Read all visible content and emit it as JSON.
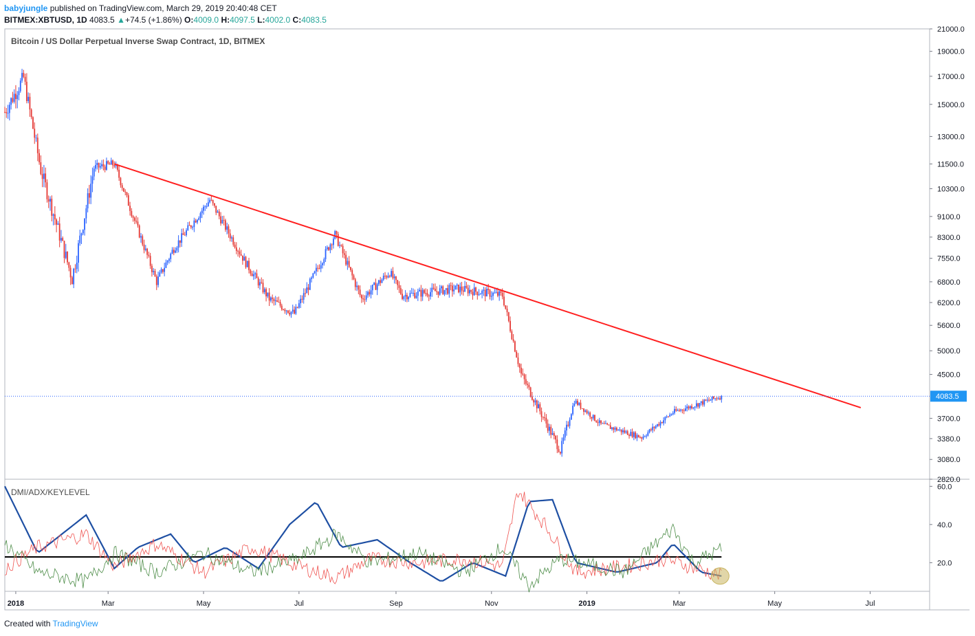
{
  "header": {
    "user": "babyjungle",
    "published": "published on TradingView.com, March 29, 2019 20:40:48 CET",
    "symbol": "BITMEX:XBTUSD, 1D",
    "last": "4083.5",
    "change_arrow": "▲",
    "change": "+74.5 (+1.86%)",
    "o_label": "O:",
    "o_val": "4009.0",
    "h_label": "H:",
    "h_val": "4097.5",
    "l_label": "L:",
    "l_val": "4002.0",
    "c_label": "C:",
    "c_val": "4083.5"
  },
  "footer": {
    "created_with": "Created with",
    "brand": "TradingView"
  },
  "chart_data": [
    {
      "type": "candlestick",
      "title": "Bitcoin / US Dollar Perpetual Inverse Swap Contract, 1D, BITMEX",
      "scale": "log",
      "ylim": [
        2820,
        21000
      ],
      "y_ticks": [
        "21000.0",
        "19000.0",
        "17000.0",
        "15000.0",
        "13000.0",
        "11500.0",
        "10300.0",
        "9100.0",
        "8300.0",
        "7550.0",
        "6800.0",
        "6200.0",
        "5600.0",
        "5000.0",
        "4500.0",
        "4083.5",
        "3700.0",
        "3380.0",
        "3080.0",
        "2820.0"
      ],
      "x_ticks": [
        "2018",
        "Mar",
        "May",
        "Jul",
        "Sep",
        "Nov",
        "2019",
        "Mar",
        "May",
        "Jul"
      ],
      "last_price": 4083.5,
      "price_path": [
        {
          "date": "2017-12-25",
          "close": 14500
        },
        {
          "date": "2018-01-06",
          "close": 16900
        },
        {
          "date": "2018-01-17",
          "close": 11200
        },
        {
          "date": "2018-02-06",
          "close": 6900
        },
        {
          "date": "2018-02-20",
          "close": 11300
        },
        {
          "date": "2018-03-05",
          "close": 11500
        },
        {
          "date": "2018-04-01",
          "close": 6800
        },
        {
          "date": "2018-04-12",
          "close": 7900
        },
        {
          "date": "2018-05-05",
          "close": 9800
        },
        {
          "date": "2018-05-28",
          "close": 7400
        },
        {
          "date": "2018-06-12",
          "close": 6300
        },
        {
          "date": "2018-06-28",
          "close": 5900
        },
        {
          "date": "2018-07-24",
          "close": 8400
        },
        {
          "date": "2018-08-10",
          "close": 6300
        },
        {
          "date": "2018-08-28",
          "close": 7100
        },
        {
          "date": "2018-09-05",
          "close": 6400
        },
        {
          "date": "2018-10-10",
          "close": 6600
        },
        {
          "date": "2018-11-08",
          "close": 6400
        },
        {
          "date": "2018-11-20",
          "close": 4500
        },
        {
          "date": "2018-12-15",
          "close": 3200
        },
        {
          "date": "2018-12-24",
          "close": 4000
        },
        {
          "date": "2019-01-10",
          "close": 3600
        },
        {
          "date": "2019-02-05",
          "close": 3400
        },
        {
          "date": "2019-02-25",
          "close": 3800
        },
        {
          "date": "2019-03-28",
          "close": 4083.5
        }
      ],
      "trendline": [
        {
          "date": "2018-03-05",
          "price": 11500
        },
        {
          "date": "2019-06-25",
          "price": 3880
        }
      ],
      "colors": {
        "up": "#2962ff",
        "down": "#e53935",
        "trendline": "#ff1f1f",
        "last_line": "#2962ff"
      }
    },
    {
      "type": "line",
      "title": "DMI/ADX/KEYLEVEL",
      "ylim": [
        5,
        63
      ],
      "y_ticks": [
        "60.0",
        "40.0",
        "20.0"
      ],
      "key_level": 23,
      "series": [
        {
          "color": "#1e4fa3",
          "points": [
            [
              "2017-12-25",
              60
            ],
            [
              "2018-01-15",
              25
            ],
            [
              "2018-02-15",
              45
            ],
            [
              "2018-03-05",
              17
            ],
            [
              "2018-03-20",
              28
            ],
            [
              "2018-04-10",
              35
            ],
            [
              "2018-04-25",
              20
            ],
            [
              "2018-05-15",
              28
            ],
            [
              "2018-06-05",
              17
            ],
            [
              "2018-06-25",
              40
            ],
            [
              "2018-07-12",
              52
            ],
            [
              "2018-07-28",
              28
            ],
            [
              "2018-08-20",
              32
            ],
            [
              "2018-09-10",
              20
            ],
            [
              "2018-09-30",
              10
            ],
            [
              "2018-10-20",
              20
            ],
            [
              "2018-11-10",
              13
            ],
            [
              "2018-11-25",
              52
            ],
            [
              "2018-12-10",
              53
            ],
            [
              "2018-12-25",
              20
            ],
            [
              "2019-01-20",
              15
            ],
            [
              "2019-02-15",
              20
            ],
            [
              "2019-02-25",
              30
            ],
            [
              "2019-03-15",
              15
            ],
            [
              "2019-03-28",
              13
            ]
          ]
        },
        {
          "color": "#ef5350",
          "points": [
            [
              "2017-12-25",
              17
            ],
            [
              "2018-01-15",
              28
            ],
            [
              "2018-02-15",
              35
            ],
            [
              "2018-03-05",
              18
            ],
            [
              "2018-04-01",
              30
            ],
            [
              "2018-05-01",
              15
            ],
            [
              "2018-06-01",
              28
            ],
            [
              "2018-07-01",
              18
            ],
            [
              "2018-07-25",
              12
            ],
            [
              "2018-08-15",
              22
            ],
            [
              "2018-09-15",
              20
            ],
            [
              "2018-10-15",
              22
            ],
            [
              "2018-11-08",
              18
            ],
            [
              "2018-11-18",
              58
            ],
            [
              "2018-12-05",
              40
            ],
            [
              "2018-12-25",
              15
            ],
            [
              "2019-01-25",
              18
            ],
            [
              "2019-02-20",
              22
            ],
            [
              "2019-03-28",
              13
            ]
          ]
        },
        {
          "color": "#4c8c47",
          "points": [
            [
              "2017-12-25",
              30
            ],
            [
              "2018-01-15",
              15
            ],
            [
              "2018-02-15",
              10
            ],
            [
              "2018-03-05",
              25
            ],
            [
              "2018-04-01",
              15
            ],
            [
              "2018-05-01",
              25
            ],
            [
              "2018-06-01",
              15
            ],
            [
              "2018-07-01",
              22
            ],
            [
              "2018-07-25",
              35
            ],
            [
              "2018-08-15",
              20
            ],
            [
              "2018-09-15",
              25
            ],
            [
              "2018-10-15",
              15
            ],
            [
              "2018-11-08",
              28
            ],
            [
              "2018-11-25",
              8
            ],
            [
              "2018-12-15",
              22
            ],
            [
              "2019-01-25",
              15
            ],
            [
              "2019-02-25",
              38
            ],
            [
              "2019-03-10",
              20
            ],
            [
              "2019-03-28",
              27
            ]
          ]
        }
      ],
      "highlight": {
        "date": "2019-03-28",
        "value": 13,
        "color": "#c8b560"
      }
    }
  ]
}
